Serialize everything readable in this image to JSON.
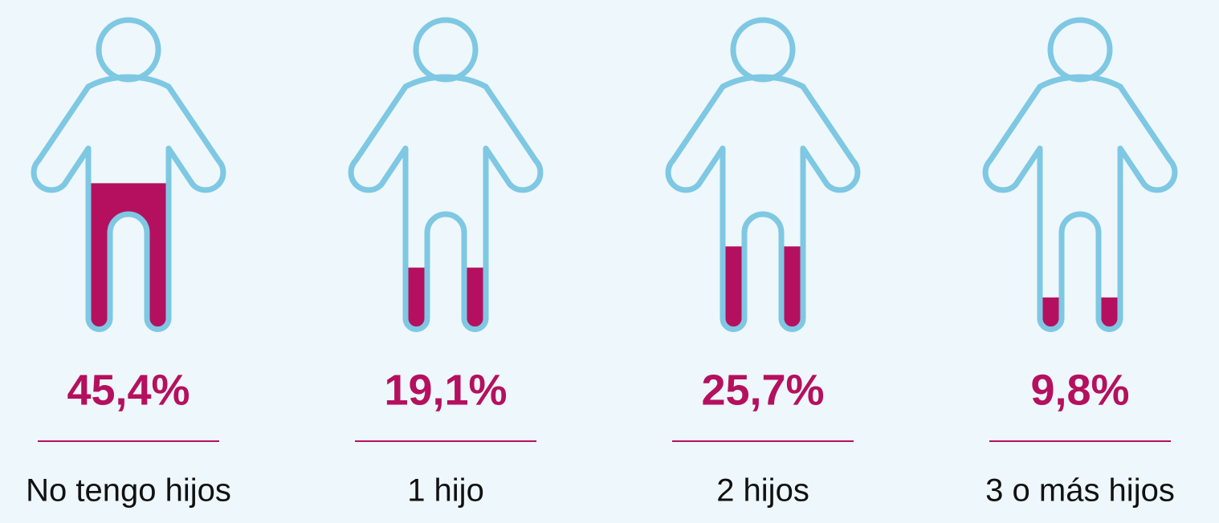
{
  "chart_data": {
    "type": "pictogram",
    "categories": [
      "No tengo hijos",
      "1 hijo",
      "2 hijos",
      "3 o más hijos"
    ],
    "values": [
      45.4,
      19.1,
      25.7,
      9.8
    ],
    "value_labels": [
      "45,4%",
      "19,1%",
      "25,7%",
      "9,8%"
    ],
    "color": "#b5105f",
    "outline_color": "#7ec8e3",
    "ylim": [
      0,
      100
    ]
  }
}
